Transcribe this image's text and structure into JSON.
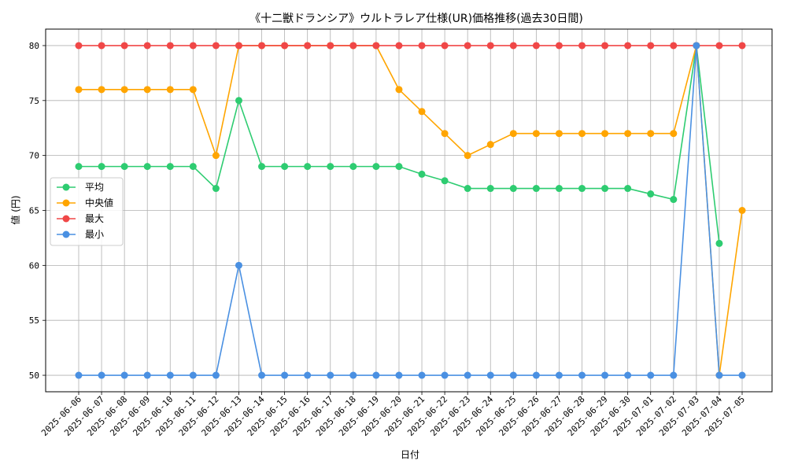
{
  "chart_data": {
    "type": "line",
    "title": "《十二獣ドランシア》ウルトラレア仕様(UR)価格推移(過去30日間)",
    "xlabel": "日付",
    "ylabel": "値 (円)",
    "ylim": [
      48.5,
      81.5
    ],
    "yticks": [
      50,
      55,
      60,
      65,
      70,
      75,
      80
    ],
    "grid": true,
    "legend_position": "center-left",
    "categories": [
      "2025-06-06",
      "2025-06-07",
      "2025-06-08",
      "2025-06-09",
      "2025-06-10",
      "2025-06-11",
      "2025-06-12",
      "2025-06-13",
      "2025-06-14",
      "2025-06-15",
      "2025-06-16",
      "2025-06-17",
      "2025-06-18",
      "2025-06-19",
      "2025-06-20",
      "2025-06-21",
      "2025-06-22",
      "2025-06-23",
      "2025-06-24",
      "2025-06-25",
      "2025-06-26",
      "2025-06-27",
      "2025-06-28",
      "2025-06-29",
      "2025-06-30",
      "2025-07-01",
      "2025-07-02",
      "2025-07-03",
      "2025-07-04",
      "2025-07-05"
    ],
    "series": [
      {
        "name": "平均",
        "color": "#2ecc71",
        "values": [
          69,
          69,
          69,
          69,
          69,
          69,
          67,
          75,
          69,
          69,
          69,
          69,
          69,
          69,
          69,
          68.3,
          67.7,
          67,
          67,
          67,
          67,
          67,
          67,
          67,
          67,
          66.5,
          66,
          80,
          62,
          null
        ]
      },
      {
        "name": "中央値",
        "color": "#ffa500",
        "values": [
          76,
          76,
          76,
          76,
          76,
          76,
          70,
          80,
          80,
          80,
          80,
          80,
          80,
          80,
          76,
          74,
          72,
          70,
          71,
          72,
          72,
          72,
          72,
          72,
          72,
          72,
          72,
          80,
          50,
          65
        ]
      },
      {
        "name": "最大",
        "color": "#f04747",
        "values": [
          80,
          80,
          80,
          80,
          80,
          80,
          80,
          80,
          80,
          80,
          80,
          80,
          80,
          80,
          80,
          80,
          80,
          80,
          80,
          80,
          80,
          80,
          80,
          80,
          80,
          80,
          80,
          80,
          80,
          80
        ]
      },
      {
        "name": "最小",
        "color": "#4a90e2",
        "values": [
          50,
          50,
          50,
          50,
          50,
          50,
          50,
          60,
          50,
          50,
          50,
          50,
          50,
          50,
          50,
          50,
          50,
          50,
          50,
          50,
          50,
          50,
          50,
          50,
          50,
          50,
          50,
          80,
          50,
          50
        ]
      }
    ]
  }
}
